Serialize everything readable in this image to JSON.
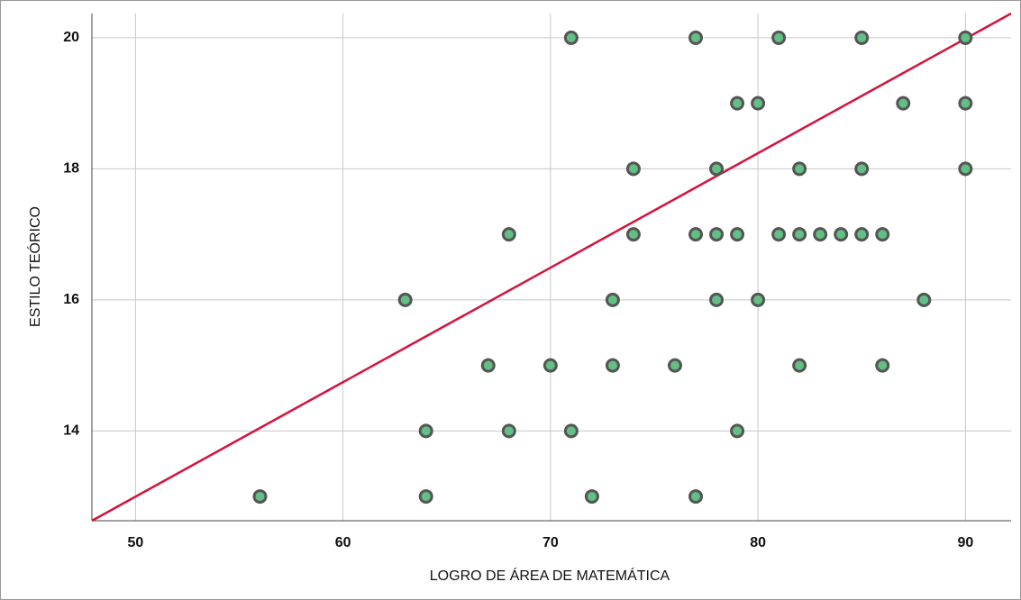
{
  "chart_data": {
    "type": "scatter",
    "x_label": "LOGRO DE ÁREA DE MATEMÁTICA",
    "y_label": "ESTILO TEÓRICO",
    "x": [
      71,
      77,
      81,
      85,
      90,
      79,
      80,
      87,
      90,
      74,
      78,
      82,
      85,
      90,
      68,
      74,
      77,
      78,
      79,
      81,
      82,
      83,
      84,
      85,
      86,
      63,
      73,
      78,
      80,
      88,
      67,
      70,
      73,
      76,
      82,
      86,
      64,
      68,
      71,
      79,
      56,
      64,
      72,
      77
    ],
    "y": [
      20,
      20,
      20,
      20,
      20,
      19,
      19,
      19,
      19,
      18,
      18,
      18,
      18,
      18,
      17,
      17,
      17,
      17,
      17,
      17,
      17,
      17,
      17,
      17,
      17,
      16,
      16,
      16,
      16,
      16,
      15,
      15,
      15,
      15,
      15,
      15,
      14,
      14,
      14,
      14,
      13,
      13,
      13,
      13
    ],
    "color": "#62c084",
    "fit_line": {
      "x": [
        47.9,
        92.2
      ],
      "y": [
        12.63,
        20.37
      ],
      "color": "#d5123d"
    },
    "xlim": [
      47.9,
      92.2
    ],
    "ylim": [
      12.63,
      20.37
    ],
    "xticks": [
      50,
      60,
      70,
      80,
      90
    ],
    "yticks": [
      14,
      16,
      18,
      20
    ],
    "grid": true
  }
}
